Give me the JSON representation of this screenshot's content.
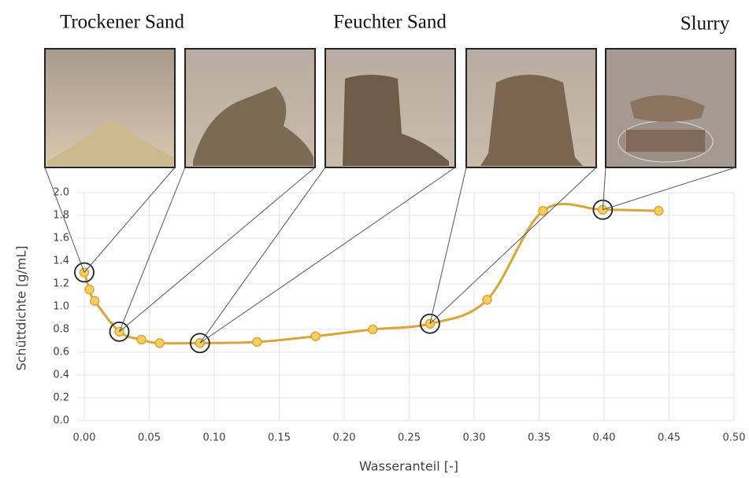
{
  "chart_data": {
    "type": "line",
    "annotations": [
      "Trockener Sand",
      "Feuchter Sand",
      "Slurry"
    ],
    "x_label": "Wasseranteil [-]",
    "y_label": "Schüttdichte [g/mL]",
    "x": [
      0,
      0.004,
      0.008,
      0.027,
      0.044,
      0.058,
      0.089,
      0.133,
      0.178,
      0.222,
      0.266,
      0.31,
      0.353,
      0.399,
      0.442
    ],
    "series": [
      {
        "color": "#d9a53a",
        "values": [
          1.3,
          1.15,
          1.05,
          0.78,
          0.71,
          0.68,
          0.68,
          0.69,
          0.74,
          0.8,
          0.85,
          1.06,
          1.84,
          1.85,
          1.84
        ]
      }
    ],
    "xlim": [
      0,
      0.5
    ],
    "xticks": [
      {
        "value": 0,
        "label": "0.00"
      },
      0.05,
      {
        "value": 0.1,
        "label": "0.10"
      },
      0.15,
      {
        "value": 0.2,
        "label": "0.20"
      },
      0.25,
      {
        "value": 0.3,
        "label": "0.30"
      },
      0.35,
      {
        "value": 0.4,
        "label": "0.40"
      },
      0.45,
      {
        "value": 0.5,
        "label": "0.50"
      }
    ],
    "ylim": [
      0,
      2
    ],
    "yticks": [
      {
        "value": 0,
        "label": "0.0"
      },
      0.2,
      0.4,
      0.6,
      0.8,
      {
        "value": 1,
        "label": "1.0"
      },
      1.2,
      1.4,
      1.6,
      1.8,
      {
        "value": 2,
        "label": "2.0"
      }
    ],
    "grid": true
  }
}
